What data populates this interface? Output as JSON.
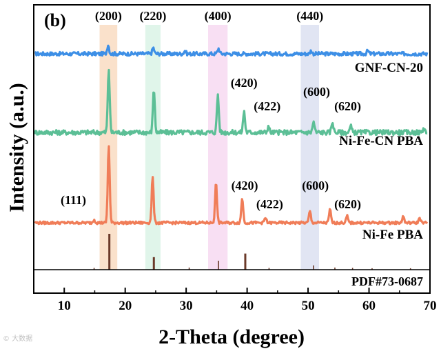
{
  "chart_data": {
    "type": "line",
    "panel_label": "(b)",
    "xlabel": "2-Theta (degree)",
    "ylabel": "Intensity (a.u.)",
    "xlim": [
      5,
      70
    ],
    "x_ticks": [
      10,
      20,
      30,
      40,
      50,
      60,
      70
    ],
    "y_ticks": [],
    "grid": false,
    "highlight_bands": [
      {
        "hkl": "(200)",
        "x_range": [
          15.8,
          18.7
        ],
        "color": "#f5c9a0"
      },
      {
        "hkl": "(220)",
        "x_range": [
          23.3,
          25.8
        ],
        "color": "#c6ecd9"
      },
      {
        "hkl": "(400)",
        "x_range": [
          33.6,
          36.8
        ],
        "color": "#f2c4e9"
      },
      {
        "hkl": "(440)",
        "x_range": [
          48.8,
          51.8
        ],
        "color": "#c9cfe9"
      }
    ],
    "series": [
      {
        "name": "GNF-CN-20",
        "color": "#3d8fe6",
        "baseline": 0.9,
        "noise": 0.012,
        "peaks": [
          {
            "x": 17.2,
            "h": 0.06
          },
          {
            "x": 24.6,
            "h": 0.04
          },
          {
            "x": 29.8,
            "h": 0.02
          },
          {
            "x": 35.3,
            "h": 0.035
          },
          {
            "x": 50.5,
            "h": 0.02
          },
          {
            "x": 59.8,
            "h": 0.02
          }
        ],
        "peak_labels": []
      },
      {
        "name": "Ni-Fe-CN PBA",
        "color": "#5cbf96",
        "baseline": 0.52,
        "noise": 0.016,
        "peaks": [
          {
            "x": 17.3,
            "h": 0.42
          },
          {
            "x": 24.7,
            "h": 0.29
          },
          {
            "x": 35.2,
            "h": 0.25
          },
          {
            "x": 39.5,
            "h": 0.14
          },
          {
            "x": 43.5,
            "h": 0.04
          },
          {
            "x": 50.9,
            "h": 0.07
          },
          {
            "x": 54.0,
            "h": 0.07
          },
          {
            "x": 57.0,
            "h": 0.04
          },
          {
            "x": 69.0,
            "h": 0.03
          }
        ],
        "peak_labels": [
          {
            "label": "(420)",
            "x": 39.5
          },
          {
            "label": "(422)",
            "x": 43.3
          },
          {
            "label": "(600)",
            "x": 51.4
          },
          {
            "label": "(620)",
            "x": 56.5
          }
        ]
      },
      {
        "name": "Ni-Fe PBA",
        "color": "#f07d58",
        "baseline": 0.22,
        "noise": 0.008,
        "peaks": [
          {
            "x": 14.9,
            "h": 0.02
          },
          {
            "x": 17.3,
            "h": 0.47
          },
          {
            "x": 24.5,
            "h": 0.28
          },
          {
            "x": 34.9,
            "h": 0.24
          },
          {
            "x": 39.2,
            "h": 0.15
          },
          {
            "x": 43.0,
            "h": 0.03
          },
          {
            "x": 50.3,
            "h": 0.07
          },
          {
            "x": 53.6,
            "h": 0.08
          },
          {
            "x": 56.4,
            "h": 0.04
          },
          {
            "x": 65.6,
            "h": 0.04
          },
          {
            "x": 68.3,
            "h": 0.03
          }
        ],
        "peak_labels": [
          {
            "label": "(111)",
            "x": 11.5
          },
          {
            "label": "(420)",
            "x": 39.6
          },
          {
            "label": "(422)",
            "x": 43.7
          },
          {
            "label": "(600)",
            "x": 51.2
          },
          {
            "label": "(620)",
            "x": 56.5
          }
        ]
      }
    ],
    "band_labels": [
      "(200)",
      "(220)",
      "(400)",
      "(440)"
    ],
    "reference": {
      "name": "PDF#73-0687",
      "color": "#6b3a2a",
      "lines": [
        {
          "x": 14.9,
          "h": 0.05
        },
        {
          "x": 17.4,
          "h": 1.0
        },
        {
          "x": 24.7,
          "h": 0.35
        },
        {
          "x": 30.5,
          "h": 0.06
        },
        {
          "x": 35.3,
          "h": 0.25
        },
        {
          "x": 39.7,
          "h": 0.45
        },
        {
          "x": 43.6,
          "h": 0.05
        },
        {
          "x": 50.9,
          "h": 0.12
        },
        {
          "x": 54.4,
          "h": 0.06
        },
        {
          "x": 57.3,
          "h": 0.05
        },
        {
          "x": 60.5,
          "h": 0.04
        },
        {
          "x": 66.8,
          "h": 0.04
        }
      ]
    }
  },
  "watermark": "© 大数据"
}
